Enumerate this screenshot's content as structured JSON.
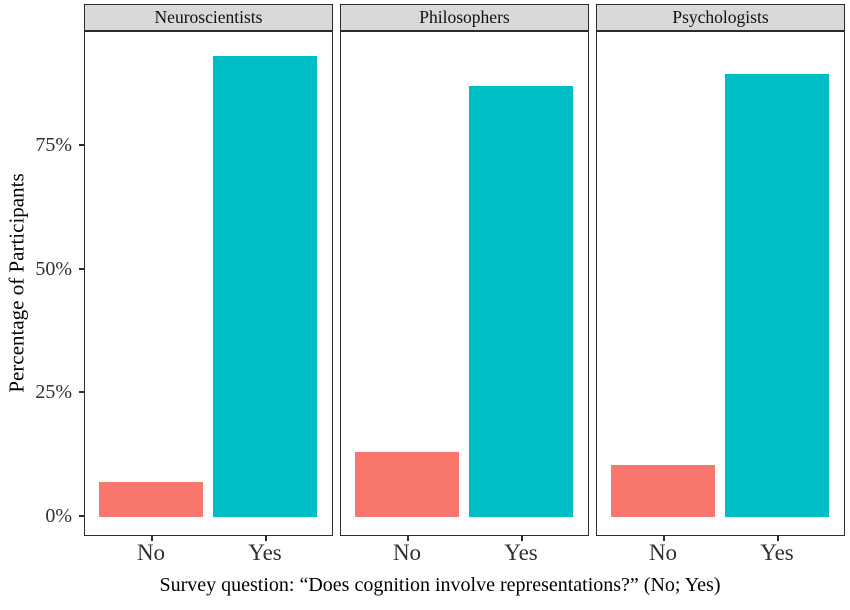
{
  "colors": {
    "no_bar": "#F8766D",
    "yes_bar": "#00BFC4",
    "strip_bg": "#D9D9D9",
    "panel_border": "#2B2B2B"
  },
  "y_axis": {
    "title": "Percentage of Participants",
    "ticks": [
      "0%",
      "25%",
      "50%",
      "75%"
    ]
  },
  "x_axis": {
    "title": "Survey question: “Does cognition involve representations?” (No; Yes)",
    "categories": [
      "No",
      "Yes"
    ]
  },
  "chart_data": {
    "type": "bar",
    "facets": [
      "Neuroscientists",
      "Philosophers",
      "Psychologists"
    ],
    "categories": [
      "No",
      "Yes"
    ],
    "series": [
      {
        "name": "Neuroscientists",
        "values": [
          7,
          93
        ]
      },
      {
        "name": "Philosophers",
        "values": [
          13,
          87
        ]
      },
      {
        "name": "Psychologists",
        "values": [
          10.5,
          89.5
        ]
      }
    ],
    "title": "",
    "xlabel": "Survey question: “Does cognition involve representations?” (No; Yes)",
    "ylabel": "Percentage of Participants",
    "ylim": [
      0,
      100
    ],
    "yticks": [
      0,
      25,
      50,
      75
    ],
    "ytick_labels": [
      "0%",
      "25%",
      "50%",
      "75%"
    ],
    "grid": false,
    "legend": "none"
  }
}
